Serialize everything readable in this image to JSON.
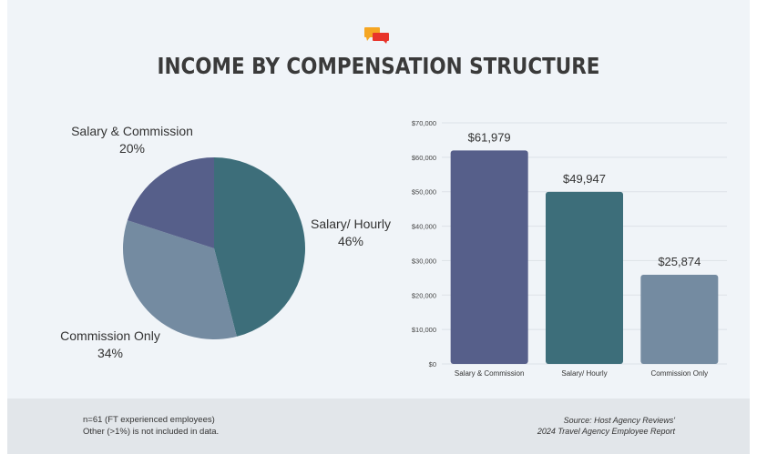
{
  "title": "INCOME BY COMPENSATION STRUCTURE",
  "colors": {
    "salary_commission": "#565f8a",
    "salary_hourly": "#3d6e7a",
    "commission_only": "#748ba1",
    "logo_orange": "#f5a623",
    "logo_red": "#e8342b"
  },
  "chart_data": [
    {
      "type": "pie",
      "slices": [
        {
          "label": "Salary/ Hourly",
          "value": 46,
          "value_label": "46%"
        },
        {
          "label": "Commission Only",
          "value": 34,
          "value_label": "34%"
        },
        {
          "label": "Salary & Commission",
          "value": 20,
          "value_label": "20%"
        }
      ]
    },
    {
      "type": "bar",
      "categories": [
        "Salary & Commission",
        "Salary/ Hourly",
        "Commission Only"
      ],
      "values": [
        61979,
        49947,
        25874
      ],
      "value_labels": [
        "$61,979",
        "$49,947",
        "$25,874"
      ],
      "ylim": [
        0,
        70000
      ],
      "yticks": [
        "$0",
        "$10,000",
        "$20,000",
        "$30,000",
        "$40,000",
        "$50,000",
        "$60,000",
        "$70,000"
      ],
      "grid": true
    }
  ],
  "footer": {
    "note_line1": "n=61 (FT experienced employees)",
    "note_line2": "Other (>1%) is not included in data.",
    "source_line1": "Source: Host Agency Reviews'",
    "source_line2": "2024 Travel Agency Employee Report"
  }
}
